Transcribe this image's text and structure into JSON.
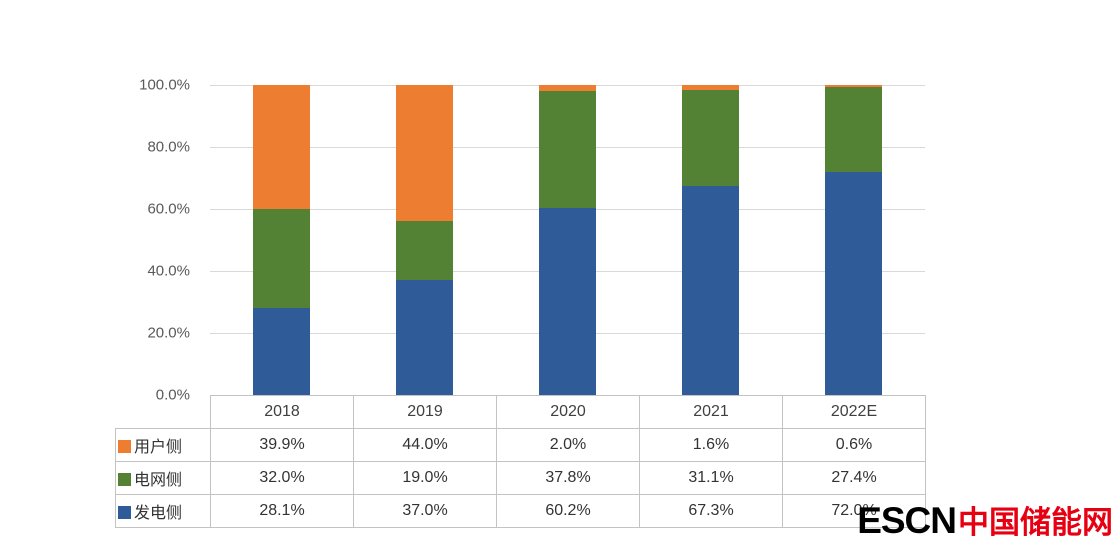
{
  "chart_data": {
    "type": "bar",
    "subtype": "stacked-100",
    "categories": [
      "2018",
      "2019",
      "2020",
      "2021",
      "2022E"
    ],
    "series": [
      {
        "name": "用户侧",
        "color": "#ED7D31",
        "values": [
          39.9,
          44.0,
          2.0,
          1.6,
          0.6
        ]
      },
      {
        "name": "电网侧",
        "color": "#548235",
        "values": [
          32.0,
          19.0,
          37.8,
          31.1,
          27.4
        ]
      },
      {
        "name": "发电侧",
        "color": "#2F5B99",
        "values": [
          28.1,
          37.0,
          60.2,
          67.3,
          72.0
        ]
      }
    ],
    "table_values": [
      [
        "39.9%",
        "44.0%",
        "2.0%",
        "1.6%",
        "0.6%"
      ],
      [
        "32.0%",
        "19.0%",
        "37.8%",
        "31.1%",
        "27.4%"
      ],
      [
        "28.1%",
        "37.0%",
        "60.2%",
        "67.3%",
        "72.0%"
      ]
    ],
    "y_ticks": [
      "100.0%",
      "80.0%",
      "60.0%",
      "40.0%",
      "20.0%",
      "0.0%"
    ],
    "ylim": [
      0,
      100
    ],
    "grid": "horizontal",
    "legend_position": "table-left",
    "title": "",
    "xlabel": "",
    "ylabel": ""
  },
  "watermark": {
    "escn": "ESCN",
    "cn": "中国储能网",
    "color_en": "#000000",
    "color_cn": "#E60012"
  }
}
